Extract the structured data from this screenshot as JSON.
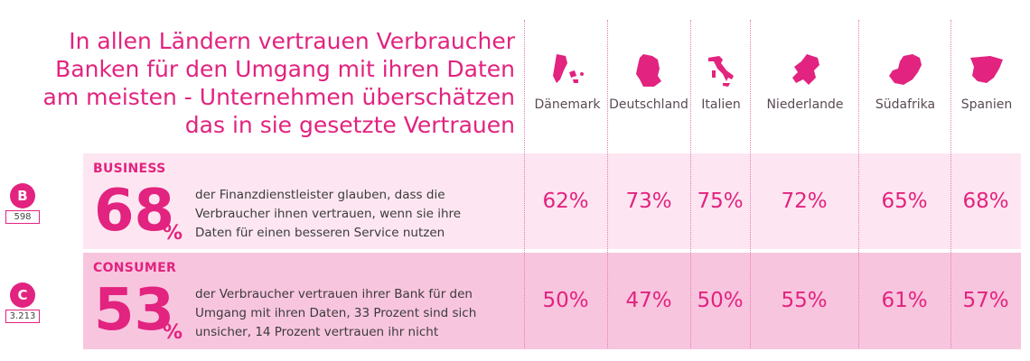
{
  "chart_data": {
    "type": "table",
    "title_lines": [
      "In allen Ländern vertrauen Verbraucher",
      "Banken für den Umgang mit ihren Daten",
      "am meisten -  Unternehmen überschätzen",
      "das in sie gesetzte Vertrauen"
    ],
    "categories": [
      "Dänemark",
      "Deutschland",
      "Italien",
      "Niederlande",
      "Südafrika",
      "Spanien"
    ],
    "series": [
      {
        "name": "BUSINESS",
        "badge_letter": "B",
        "sample_size": "598",
        "headline_number": "68",
        "headline_unit": "%",
        "description": [
          "der Finanzdienstleister glauben, dass die",
          "Verbraucher ihnen vertrauen, wenn sie ihre",
          "Daten für einen besseren Service nutzen"
        ],
        "values": [
          62,
          73,
          75,
          72,
          65,
          68
        ],
        "value_labels": [
          "62%",
          "73%",
          "75%",
          "72%",
          "65%",
          "68%"
        ]
      },
      {
        "name": "CONSUMER",
        "badge_letter": "C",
        "sample_size": "3.213",
        "headline_number": "53",
        "headline_unit": "%",
        "description": [
          "der Verbraucher vertrauen ihrer Bank für den",
          "Umgang mit ihren Daten, 33 Prozent sind sich",
          "unsicher, 14 Prozent vertrauen ihr nicht"
        ],
        "values": [
          50,
          47,
          50,
          55,
          61,
          57
        ],
        "value_labels": [
          "50%",
          "47%",
          "50%",
          "55%",
          "61%",
          "57%"
        ]
      }
    ],
    "country_icons": [
      "denmark-map-icon",
      "germany-map-icon",
      "italy-map-icon",
      "netherlands-map-icon",
      "south-africa-map-icon",
      "spain-map-icon"
    ]
  },
  "colors": {
    "accent": "#e2237f",
    "business_row_bg": "#fde6f1",
    "consumer_row_bg": "#f8c5df"
  }
}
